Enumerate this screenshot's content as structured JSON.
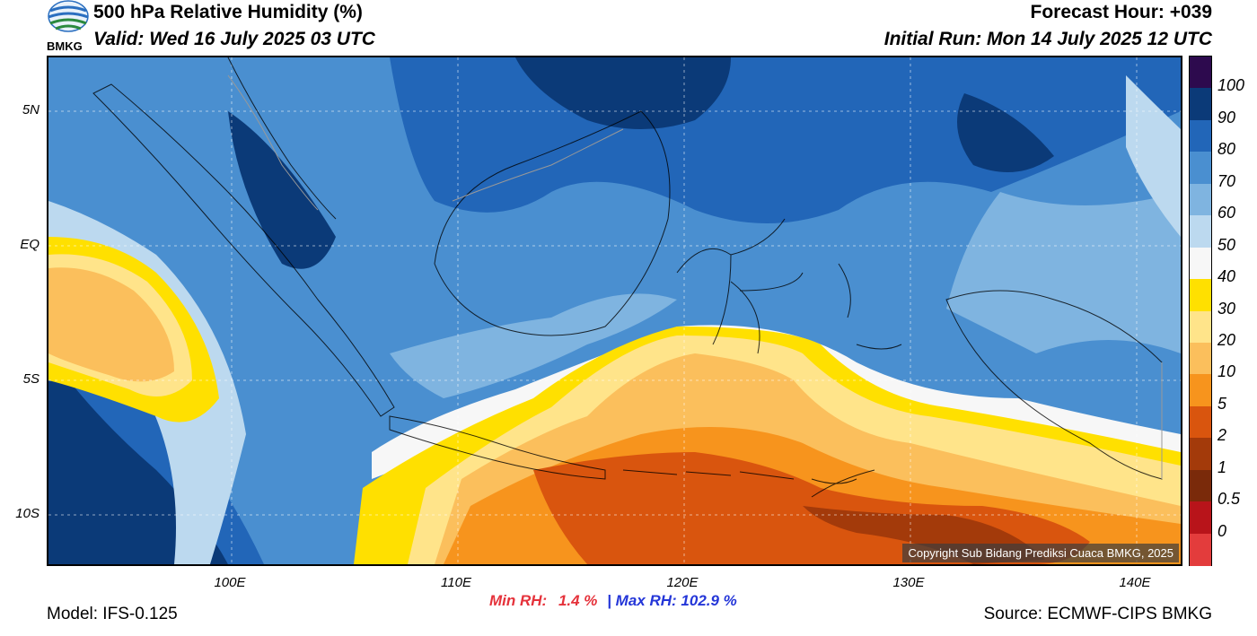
{
  "header": {
    "title": "500 hPa Relative Humidity (%)",
    "valid": "Valid: Wed 16 July 2025 03 UTC",
    "forecast_hour": "Forecast Hour: +039",
    "initial_run": "Initial Run: Mon 14 July 2025 12 UTC"
  },
  "logo": {
    "text": "BMKG",
    "icon": "bmkg-logo-icon"
  },
  "map": {
    "lat_labels": [
      "5N",
      "EQ",
      "5S",
      "10S"
    ],
    "lon_labels": [
      "100E",
      "110E",
      "120E",
      "130E",
      "140E"
    ],
    "copyright": "Copyright Sub Bidang Prediksi Cuaca BMKG, 2025"
  },
  "colorbar": {
    "labels": [
      "100",
      "90",
      "80",
      "70",
      "60",
      "50",
      "40",
      "30",
      "20",
      "10",
      "5",
      "2",
      "1",
      "0.5",
      "0"
    ],
    "colors": [
      "#2d0a4e",
      "#0b3a78",
      "#2266b8",
      "#4a8fd0",
      "#7fb4e0",
      "#bcd9ef",
      "#f7f7f7",
      "#ffe000",
      "#ffe48a",
      "#fbbf5c",
      "#f7941d",
      "#d9550e",
      "#a33a0a",
      "#7a2a0a",
      "#b8141a",
      "#e33c3c"
    ]
  },
  "stats": {
    "min_label": "Min RH:",
    "min_value": "1.4 %",
    "separator": "|",
    "max_label": "Max RH:",
    "max_value": "102.9 %"
  },
  "footer": {
    "model": "Model: IFS-0.125",
    "source": "Source: ECMWF-CIPS BMKG"
  }
}
